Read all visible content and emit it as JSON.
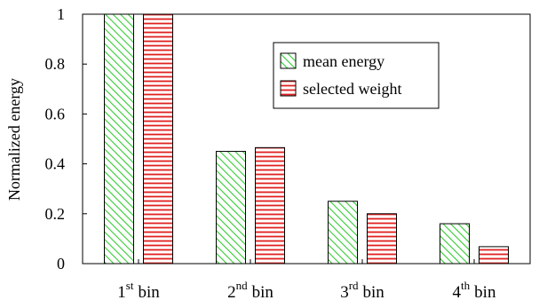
{
  "chart_data": {
    "type": "bar",
    "title": "",
    "xlabel": "",
    "ylabel": "Normalized energy",
    "ylim": [
      0,
      1
    ],
    "yticks": [
      "0",
      "0.2",
      "0.4",
      "0.6",
      "0.8",
      "1"
    ],
    "grid": false,
    "legend_position": "top-right",
    "categories": [
      {
        "base": "1",
        "sup": "st",
        "rest": "bin"
      },
      {
        "base": "2",
        "sup": "nd",
        "rest": "bin"
      },
      {
        "base": "3",
        "sup": "rd",
        "rest": "bin"
      },
      {
        "base": "4",
        "sup": "th",
        "rest": "bin"
      }
    ],
    "series": [
      {
        "name": "mean energy",
        "values": [
          1.0,
          0.45,
          0.25,
          0.16
        ],
        "color": "#33cc33",
        "pattern": "diagonal-hatch"
      },
      {
        "name": "selected weight",
        "values": [
          1.0,
          0.465,
          0.2,
          0.068
        ],
        "color": "#e02020",
        "pattern": "horizontal-stripes"
      }
    ]
  }
}
